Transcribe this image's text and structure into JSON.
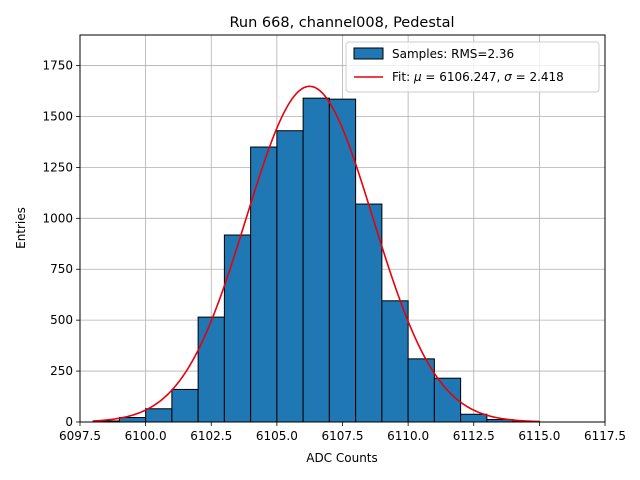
{
  "chart_data": {
    "type": "bar",
    "title": "Run 668, channel008, Pedestal",
    "xlabel": "ADC Counts",
    "ylabel": "Entries",
    "xlim": [
      6097.5,
      6117.5
    ],
    "ylim": [
      0,
      1900
    ],
    "xticks": [
      6097.5,
      6100.0,
      6102.5,
      6105.0,
      6107.5,
      6110.0,
      6112.5,
      6115.0,
      6117.5
    ],
    "xtick_labels": [
      "6097.5",
      "6100.0",
      "6102.5",
      "6105.0",
      "6107.5",
      "6110.0",
      "6112.5",
      "6115.0",
      "6117.5"
    ],
    "yticks": [
      0,
      250,
      500,
      750,
      1000,
      1250,
      1500,
      1750
    ],
    "ytick_labels": [
      "0",
      "250",
      "500",
      "750",
      "1000",
      "1250",
      "1500",
      "1750"
    ],
    "grid": true,
    "legend_position": "top-right",
    "histogram": {
      "name": "Samples: RMS=2.36",
      "bin_edges": [
        6098,
        6099,
        6100,
        6101,
        6102,
        6103,
        6104,
        6105,
        6106,
        6107,
        6108,
        6109,
        6110,
        6111,
        6112,
        6113,
        6114,
        6115
      ],
      "counts": [
        5,
        22,
        65,
        160,
        515,
        918,
        1350,
        1430,
        1590,
        1585,
        1070,
        595,
        310,
        215,
        38,
        12,
        3
      ],
      "color": "#1f77b4"
    },
    "fit": {
      "name": "Fit: μ = 6106.247, σ = 2.418",
      "name_prefix": "Fit: ",
      "mu_symbol": "μ",
      "mu_text": " = 6106.247, ",
      "sigma_symbol": "σ",
      "sigma_text": " = 2.418",
      "mu": 6106.247,
      "sigma": 2.418,
      "amplitude": 1648,
      "x_range": [
        6098,
        6115
      ],
      "color": "#e8000b"
    }
  }
}
